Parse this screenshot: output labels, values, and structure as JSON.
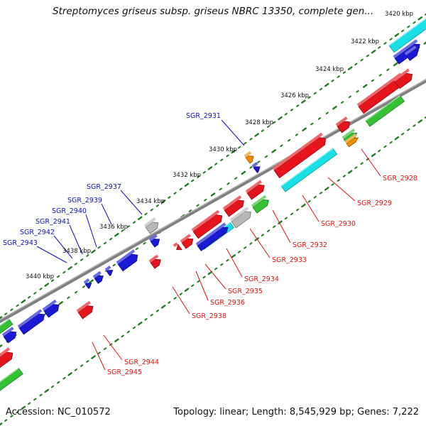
{
  "title": "Streptomyces griseus subsp. griseus NBRC 13350, complete gen...",
  "footer": {
    "accession": "Accession: NC_010572",
    "topology": "Topology: linear; Length: 8,545,929 bp; Genes: 7,222"
  },
  "colors": {
    "red": "#e8141c",
    "blue": "#1a1ad6",
    "cyan": "#19e0e6",
    "green": "#34c234",
    "orange": "#f08c00",
    "gray": "#b8b8b8",
    "axis": "#808080",
    "tick_green": "#1e7d1e",
    "label_red": "#e01010",
    "label_blue": "#1010c0"
  },
  "scale_labels": [
    "3420 kbp",
    "3422 kbp",
    "3424 kbp",
    "3426 kbp",
    "3428 kbp",
    "3430 kbp",
    "3432 kbp",
    "3434 kbp",
    "3436 kbp",
    "3438 kbp",
    "3440 kbp"
  ],
  "upper_gene_labels": [
    "SGR_2931",
    "SGR_2937",
    "SGR_2939",
    "SGR_2940",
    "SGR_2941",
    "SGR_2942",
    "SGR_2943"
  ],
  "lower_gene_labels": [
    "SGR_2928",
    "SGR_2929",
    "SGR_2930",
    "SGR_2932",
    "SGR_2933",
    "SGR_2934",
    "SGR_2935",
    "SGR_2936",
    "SGR_2938",
    "SGR_2944",
    "SGR_2945"
  ]
}
